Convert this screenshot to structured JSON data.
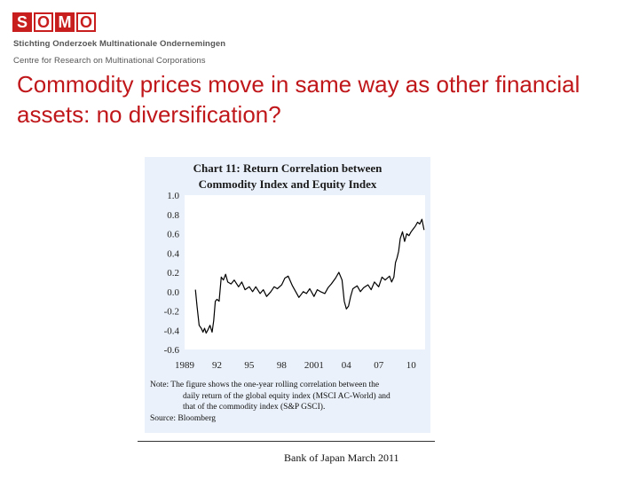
{
  "logo": {
    "letters": [
      "S",
      "O",
      "M",
      "O"
    ]
  },
  "header": {
    "org_name": "Stichting Onderzoek Multinationale Ondernemingen",
    "org_subtitle": "Centre for Research on Multinational Corporations"
  },
  "slide": {
    "title": "Commodity prices move in same way as other financial assets: no diversification?"
  },
  "chart_data": {
    "type": "line",
    "title": "Chart 11: Return Correlation between Commodity Index and Equity Index",
    "title_lines": [
      "Chart 11: Return Correlation between",
      "Commodity Index and Equity Index"
    ],
    "xlabel": "",
    "ylabel": "",
    "xlim": [
      1989,
      2011.3
    ],
    "ylim": [
      -0.6,
      1.0
    ],
    "y_ticks": [
      1.0,
      0.8,
      0.6,
      0.4,
      0.2,
      0.0,
      -0.2,
      -0.4,
      -0.6
    ],
    "y_tick_labels": [
      "1.0",
      "0.8",
      "0.6",
      "0.4",
      "0.2",
      "0.0",
      "-0.2",
      "-0.4",
      "-0.6"
    ],
    "x_ticks": [
      1989,
      1992,
      1995,
      1998,
      2001,
      2004,
      2007,
      2010
    ],
    "x_tick_labels": [
      "1989",
      "92",
      "95",
      "98",
      "2001",
      "04",
      "07",
      "10"
    ],
    "grid": false,
    "series": [
      {
        "color": "#000000",
        "x": [
          1990.0,
          1990.15,
          1990.35,
          1990.55,
          1990.7,
          1990.85,
          1991.0,
          1991.15,
          1991.35,
          1991.55,
          1991.7,
          1991.85,
          1992.0,
          1992.2,
          1992.4,
          1992.6,
          1992.8,
          1993.0,
          1993.3,
          1993.6,
          1994.0,
          1994.3,
          1994.6,
          1995.0,
          1995.3,
          1995.6,
          1996.0,
          1996.3,
          1996.6,
          1997.0,
          1997.3,
          1997.6,
          1998.0,
          1998.3,
          1998.6,
          1999.0,
          1999.3,
          1999.6,
          2000.0,
          2000.3,
          2000.6,
          2001.0,
          2001.3,
          2001.6,
          2002.0,
          2002.3,
          2002.6,
          2003.0,
          2003.3,
          2003.6,
          2003.8,
          2004.0,
          2004.2,
          2004.4,
          2004.6,
          2005.0,
          2005.3,
          2005.6,
          2006.0,
          2006.3,
          2006.6,
          2007.0,
          2007.3,
          2007.6,
          2008.0,
          2008.2,
          2008.4,
          2008.55,
          2008.7,
          2008.85,
          2009.0,
          2009.2,
          2009.4,
          2009.6,
          2009.8,
          2010.0,
          2010.2,
          2010.4,
          2010.6,
          2010.8,
          2011.0,
          2011.2
        ],
        "values": [
          0.02,
          -0.15,
          -0.35,
          -0.38,
          -0.42,
          -0.38,
          -0.43,
          -0.4,
          -0.35,
          -0.42,
          -0.3,
          -0.1,
          -0.08,
          -0.1,
          0.15,
          0.12,
          0.18,
          0.1,
          0.08,
          0.12,
          0.05,
          0.1,
          0.02,
          0.05,
          0.0,
          0.05,
          -0.02,
          0.02,
          -0.05,
          0.0,
          0.05,
          0.03,
          0.07,
          0.14,
          0.16,
          0.06,
          0.0,
          -0.06,
          0.0,
          -0.02,
          0.03,
          -0.05,
          0.02,
          0.0,
          -0.02,
          0.04,
          0.08,
          0.14,
          0.2,
          0.12,
          -0.1,
          -0.18,
          -0.15,
          -0.05,
          0.03,
          0.06,
          0.0,
          0.04,
          0.07,
          0.02,
          0.1,
          0.05,
          0.15,
          0.12,
          0.16,
          0.1,
          0.15,
          0.3,
          0.35,
          0.42,
          0.55,
          0.62,
          0.52,
          0.6,
          0.58,
          0.62,
          0.65,
          0.68,
          0.72,
          0.7,
          0.75,
          0.64
        ]
      }
    ]
  },
  "chart_note": {
    "lines": [
      "Note: The figure shows the one-year rolling correlation between the",
      "daily return of the global equity index (MSCI AC-World) and",
      "that of the commodity index (S&P GSCI).",
      "Source: Bloomberg"
    ]
  },
  "credit": "Bank of Japan March 2011"
}
